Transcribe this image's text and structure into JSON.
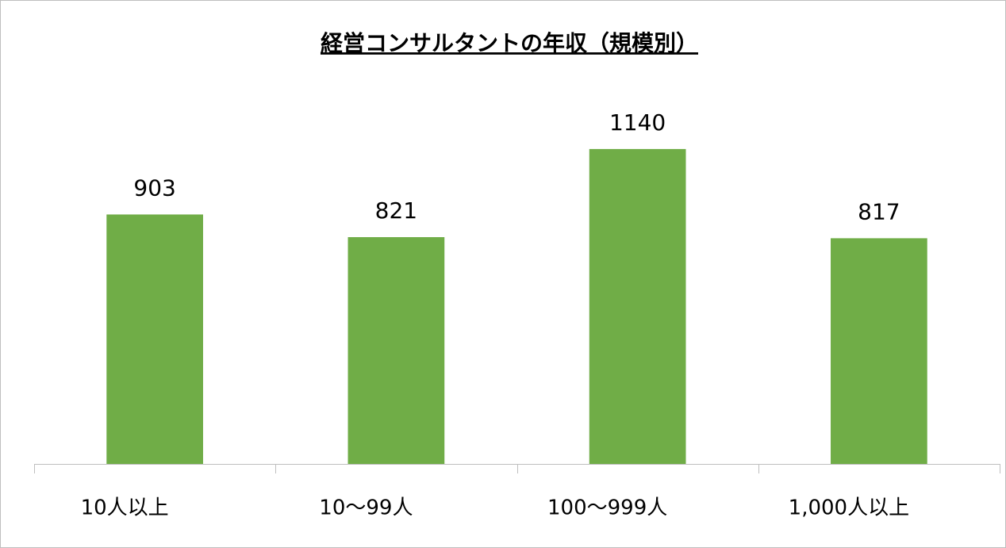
{
  "chart_data": {
    "type": "bar",
    "title": "経営コンサルタントの年収（規模別）",
    "categories": [
      "10人以上",
      "10〜99人",
      "100〜999人",
      "1,000人以上"
    ],
    "values": [
      903,
      821,
      1140,
      817
    ],
    "color": "#70ad47",
    "ylim": [
      0,
      1200
    ]
  }
}
